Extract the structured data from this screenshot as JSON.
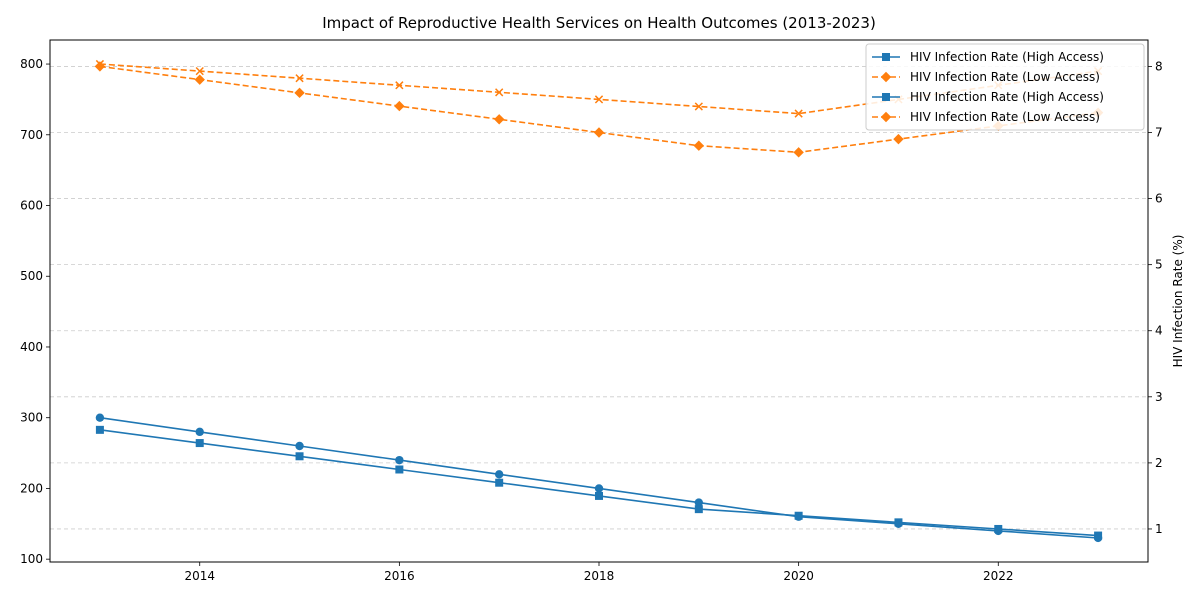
{
  "chart_data": {
    "type": "line",
    "title": "Impact of Reproductive Health Services on Health Outcomes (2013-2023)",
    "xlabel": "",
    "ylabel_left": "",
    "ylabel_right": "HIV Infection Rate (%)",
    "xlim": [
      2012.5,
      2023.5
    ],
    "ylim_left": [
      96,
      834
    ],
    "ylim_right": [
      0.5,
      8.4
    ],
    "x_ticks": [
      2014,
      2016,
      2018,
      2020,
      2022
    ],
    "y_ticks_left": [
      100,
      200,
      300,
      400,
      500,
      600,
      700,
      800
    ],
    "y_ticks_right": [
      1,
      2,
      3,
      4,
      5,
      6,
      7,
      8
    ],
    "grid": "horizontal dashed at right-axis ticks",
    "legend_position": "top-right",
    "x": [
      2013,
      2014,
      2015,
      2016,
      2017,
      2018,
      2019,
      2020,
      2021,
      2022,
      2023
    ],
    "series": [
      {
        "axis": "left",
        "color": "#1f77b4",
        "marker": "circle",
        "dash": false,
        "in_legend": false,
        "values": [
          300,
          280,
          260,
          240,
          220,
          200,
          180,
          160,
          150,
          140,
          130
        ]
      },
      {
        "axis": "left",
        "color": "#ff7f0e",
        "marker": "x",
        "dash": true,
        "in_legend": false,
        "values": [
          800,
          790,
          780,
          770,
          760,
          750,
          740,
          730,
          750,
          770,
          790
        ]
      },
      {
        "axis": "right",
        "name": "HIV Infection Rate (High Access)",
        "color": "#1f77b4",
        "marker": "square",
        "dash": false,
        "in_legend": true,
        "values": [
          2.5,
          2.3,
          2.1,
          1.9,
          1.7,
          1.5,
          1.3,
          1.2,
          1.1,
          1.0,
          0.9
        ]
      },
      {
        "axis": "right",
        "name": "HIV Infection Rate (Low Access)",
        "color": "#ff7f0e",
        "marker": "diamond",
        "dash": true,
        "in_legend": true,
        "values": [
          8.0,
          7.8,
          7.6,
          7.4,
          7.2,
          7.0,
          6.8,
          6.7,
          6.9,
          7.1,
          7.3
        ]
      }
    ],
    "legend": [
      {
        "label": "HIV Infection Rate (High Access)",
        "color": "#1f77b4",
        "marker": "square",
        "dash": false
      },
      {
        "label": "HIV Infection Rate (Low Access)",
        "color": "#ff7f0e",
        "marker": "diamond",
        "dash": true
      },
      {
        "label": "HIV Infection Rate (High Access)",
        "color": "#1f77b4",
        "marker": "square",
        "dash": false
      },
      {
        "label": "HIV Infection Rate (Low Access)",
        "color": "#ff7f0e",
        "marker": "diamond",
        "dash": true
      }
    ]
  }
}
